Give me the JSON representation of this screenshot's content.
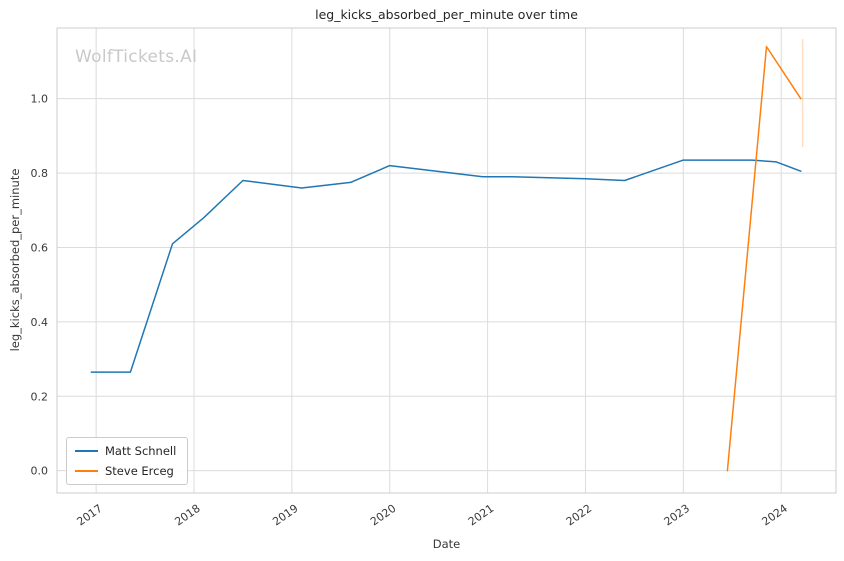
{
  "watermark": "WolfTickets.AI",
  "chart_data": {
    "type": "line",
    "title": "leg_kicks_absorbed_per_minute over time",
    "xlabel": "Date",
    "ylabel": "leg_kicks_absorbed_per_minute",
    "grid": true,
    "legend_position": "lower left",
    "x_ticks": [
      2017,
      2018,
      2019,
      2020,
      2021,
      2022,
      2023,
      2024
    ],
    "y_ticks": [
      0.0,
      0.2,
      0.4,
      0.6,
      0.8,
      1.0
    ],
    "xlim": [
      2016.6,
      2024.56
    ],
    "ylim": [
      -0.06,
      1.19
    ],
    "series": [
      {
        "name": "Matt Schnell",
        "color": "#1f77b4",
        "x": [
          2016.95,
          2017.35,
          2017.78,
          2018.1,
          2018.5,
          2019.1,
          2019.6,
          2020.0,
          2020.95,
          2021.25,
          2022.0,
          2022.4,
          2023.0,
          2023.7,
          2023.95,
          2024.2
        ],
        "y": [
          0.265,
          0.265,
          0.61,
          0.68,
          0.78,
          0.76,
          0.775,
          0.82,
          0.79,
          0.79,
          0.785,
          0.78,
          0.835,
          0.835,
          0.83,
          0.805
        ]
      },
      {
        "name": "Steve Erceg",
        "color": "#ff7f0e",
        "x": [
          2023.45,
          2023.85,
          2024.2
        ],
        "y": [
          0.0,
          1.14,
          1.0
        ]
      }
    ],
    "error_bar": {
      "x": 2024.22,
      "y_low": 0.87,
      "y_high": 1.16,
      "color": "#ff7f0e",
      "opacity": 0.25
    },
    "grid_color": "#dcdcdc",
    "border_color": "#cccccc"
  }
}
